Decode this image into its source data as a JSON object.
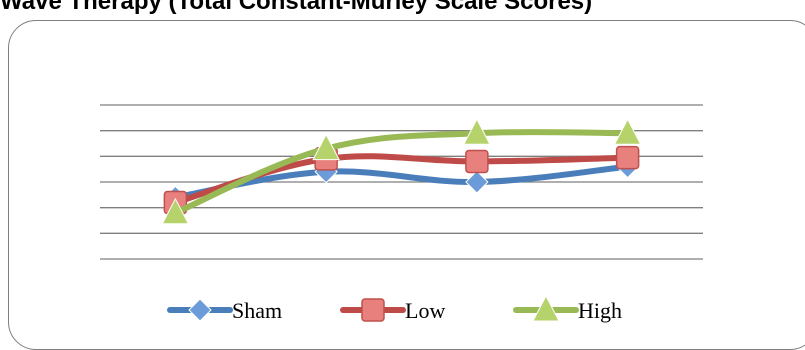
{
  "title": "Wave Therapy (Total Constant-Murley Scale Scores)",
  "colors": {
    "sham": "#4a7ebb",
    "low": "#be4b48",
    "high": "#98b954",
    "grid": "#7f7f7f"
  },
  "chart_data": {
    "type": "line",
    "title": "Wave Therapy (Total Constant-Murley Scale Scores)",
    "xlabel": "",
    "ylabel": "",
    "categories": [
      "",
      "",
      "",
      ""
    ],
    "gridlines": 7,
    "grid": true,
    "legend_position": "bottom",
    "ylim": [
      0,
      6
    ],
    "series": [
      {
        "name": "Sham",
        "marker": "diamond",
        "values": [
          2.4,
          3.4,
          3.0,
          3.6
        ]
      },
      {
        "name": "Low",
        "marker": "square",
        "values": [
          2.2,
          3.9,
          3.8,
          3.95
        ]
      },
      {
        "name": "High",
        "marker": "triangle",
        "values": [
          1.8,
          4.3,
          4.9,
          4.9
        ]
      }
    ]
  }
}
